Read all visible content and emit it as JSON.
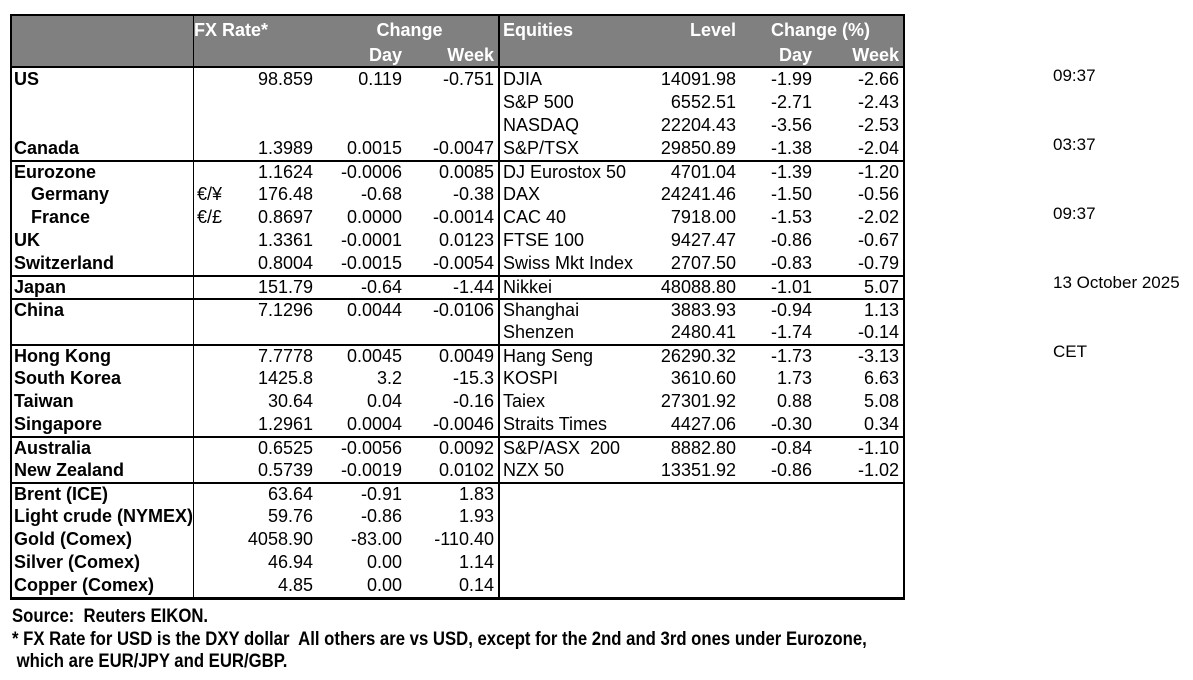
{
  "colors": {
    "header_bg": "#808080",
    "header_text": "#ffffff",
    "border": "#000000",
    "text": "#000000"
  },
  "table": {
    "fx_header": {
      "rate_label": "FX Rate*",
      "change_label": "Change",
      "day_label": "Day",
      "week_label": "Week"
    },
    "eq_header": {
      "title": "Equities",
      "level_label": "Level",
      "change_label": "Change (%)",
      "day_label": "Day",
      "week_label": "Week"
    }
  },
  "rows": [
    {
      "label": "US",
      "pair": "",
      "rate": "98.859",
      "day": "0.119",
      "week": "-0.751",
      "equity": "DJIA",
      "level": "14091.98",
      "eq_day": "-1.99",
      "eq_week": "-2.66",
      "group": false,
      "indent": false
    },
    {
      "label": "",
      "pair": "",
      "rate": "",
      "day": "",
      "week": "",
      "equity": "S&P 500",
      "level": "6552.51",
      "eq_day": "-2.71",
      "eq_week": "-2.43",
      "group": false,
      "indent": false
    },
    {
      "label": "",
      "pair": "",
      "rate": "",
      "day": "",
      "week": "",
      "equity": "NASDAQ",
      "level": "22204.43",
      "eq_day": "-3.56",
      "eq_week": "-2.53",
      "group": false,
      "indent": false
    },
    {
      "label": "Canada",
      "pair": "",
      "rate": "1.3989",
      "day": "0.0015",
      "week": "-0.0047",
      "equity": "S&P/TSX",
      "level": "29850.89",
      "eq_day": "-1.38",
      "eq_week": "-2.04",
      "group": false,
      "indent": false
    },
    {
      "label": "Eurozone",
      "pair": "",
      "rate": "1.1624",
      "day": "-0.0006",
      "week": "0.0085",
      "equity": "DJ Eurostox 50",
      "level": "4701.04",
      "eq_day": "-1.39",
      "eq_week": "-1.20",
      "group": true,
      "indent": false
    },
    {
      "label": "Germany",
      "pair": "€/¥",
      "rate": "176.48",
      "day": "-0.68",
      "week": "-0.38",
      "equity": "DAX",
      "level": "24241.46",
      "eq_day": "-1.50",
      "eq_week": "-0.56",
      "group": false,
      "indent": true
    },
    {
      "label": "France",
      "pair": "€/£",
      "rate": "0.8697",
      "day": "0.0000",
      "week": "-0.0014",
      "equity": "CAC 40",
      "level": "7918.00",
      "eq_day": "-1.53",
      "eq_week": "-2.02",
      "group": false,
      "indent": true
    },
    {
      "label": "UK",
      "pair": "",
      "rate": "1.3361",
      "day": "-0.0001",
      "week": "0.0123",
      "equity": "FTSE 100",
      "level": "9427.47",
      "eq_day": "-0.86",
      "eq_week": "-0.67",
      "group": false,
      "indent": false
    },
    {
      "label": "Switzerland",
      "pair": "",
      "rate": "0.8004",
      "day": "-0.0015",
      "week": "-0.0054",
      "equity": "Swiss Mkt Index",
      "level": "2707.50",
      "eq_day": "-0.83",
      "eq_week": "-0.79",
      "group": false,
      "indent": false
    },
    {
      "label": "Japan",
      "pair": "",
      "rate": "151.79",
      "day": "-0.64",
      "week": "-1.44",
      "equity": "Nikkei",
      "level": "48088.80",
      "eq_day": "-1.01",
      "eq_week": "5.07",
      "group": true,
      "indent": false
    },
    {
      "label": "China",
      "pair": "",
      "rate": "7.1296",
      "day": "0.0044",
      "week": "-0.0106",
      "equity": "Shanghai",
      "level": "3883.93",
      "eq_day": "-0.94",
      "eq_week": "1.13",
      "group": true,
      "indent": false
    },
    {
      "label": "",
      "pair": "",
      "rate": "",
      "day": "",
      "week": "",
      "equity": "Shenzen",
      "level": "2480.41",
      "eq_day": "-1.74",
      "eq_week": "-0.14",
      "group": false,
      "indent": false
    },
    {
      "label": "Hong Kong",
      "pair": "",
      "rate": "7.7778",
      "day": "0.0045",
      "week": "0.0049",
      "equity": "Hang Seng",
      "level": "26290.32",
      "eq_day": "-1.73",
      "eq_week": "-3.13",
      "group": true,
      "indent": false
    },
    {
      "label": "South Korea",
      "pair": "",
      "rate": "1425.8",
      "day": "3.2",
      "week": "-15.3",
      "equity": "KOSPI",
      "level": "3610.60",
      "eq_day": "1.73",
      "eq_week": "6.63",
      "group": false,
      "indent": false
    },
    {
      "label": "Taiwan",
      "pair": "",
      "rate": "30.64",
      "day": "0.04",
      "week": "-0.16",
      "equity": "Taiex",
      "level": "27301.92",
      "eq_day": "0.88",
      "eq_week": "5.08",
      "group": false,
      "indent": false
    },
    {
      "label": "Singapore",
      "pair": "",
      "rate": "1.2961",
      "day": "0.0004",
      "week": "-0.0046",
      "equity": "Straits Times",
      "level": "4427.06",
      "eq_day": "-0.30",
      "eq_week": "0.34",
      "group": false,
      "indent": false
    },
    {
      "label": "Australia",
      "pair": "",
      "rate": "0.6525",
      "day": "-0.0056",
      "week": "0.0092",
      "equity": "S&P/ASX  200",
      "level": "8882.80",
      "eq_day": "-0.84",
      "eq_week": "-1.10",
      "group": true,
      "indent": false
    },
    {
      "label": "New Zealand",
      "pair": "",
      "rate": "0.5739",
      "day": "-0.0019",
      "week": "0.0102",
      "equity": "NZX 50",
      "level": "13351.92",
      "eq_day": "-0.86",
      "eq_week": "-1.02",
      "group": false,
      "indent": false
    },
    {
      "label": "Brent (ICE)",
      "pair": "",
      "rate": "63.64",
      "day": "-0.91",
      "week": "1.83",
      "equity": "",
      "level": "",
      "eq_day": "",
      "eq_week": "",
      "group": true,
      "indent": false
    },
    {
      "label": "Light crude (NYMEX)",
      "pair": "",
      "rate": "59.76",
      "day": "-0.86",
      "week": "1.93",
      "equity": "",
      "level": "",
      "eq_day": "",
      "eq_week": "",
      "group": false,
      "indent": false
    },
    {
      "label": "Gold (Comex)",
      "pair": "",
      "rate": "4058.90",
      "day": "-83.00",
      "week": "-110.40",
      "equity": "",
      "level": "",
      "eq_day": "",
      "eq_week": "",
      "group": false,
      "indent": false
    },
    {
      "label": "Silver (Comex)",
      "pair": "",
      "rate": "46.94",
      "day": "0.00",
      "week": "1.14",
      "equity": "",
      "level": "",
      "eq_day": "",
      "eq_week": "",
      "group": false,
      "indent": false
    },
    {
      "label": "Copper (Comex)",
      "pair": "",
      "rate": "4.85",
      "day": "0.00",
      "week": "0.14",
      "equity": "",
      "level": "",
      "eq_day": "",
      "eq_week": "",
      "group": false,
      "indent": false
    }
  ],
  "timestamps": {
    "times": [
      "09:37",
      "03:37",
      "09:37"
    ],
    "date": "13 October 2025",
    "timezone": "CET"
  },
  "footer": {
    "source": "Source:  Reuters EIKON.",
    "note_line1": "* FX Rate for USD is the DXY dollar  All others are vs USD, except for the 2nd and 3rd ones under Eurozone,",
    "note_line2": " which are EUR/JPY and EUR/GBP."
  }
}
